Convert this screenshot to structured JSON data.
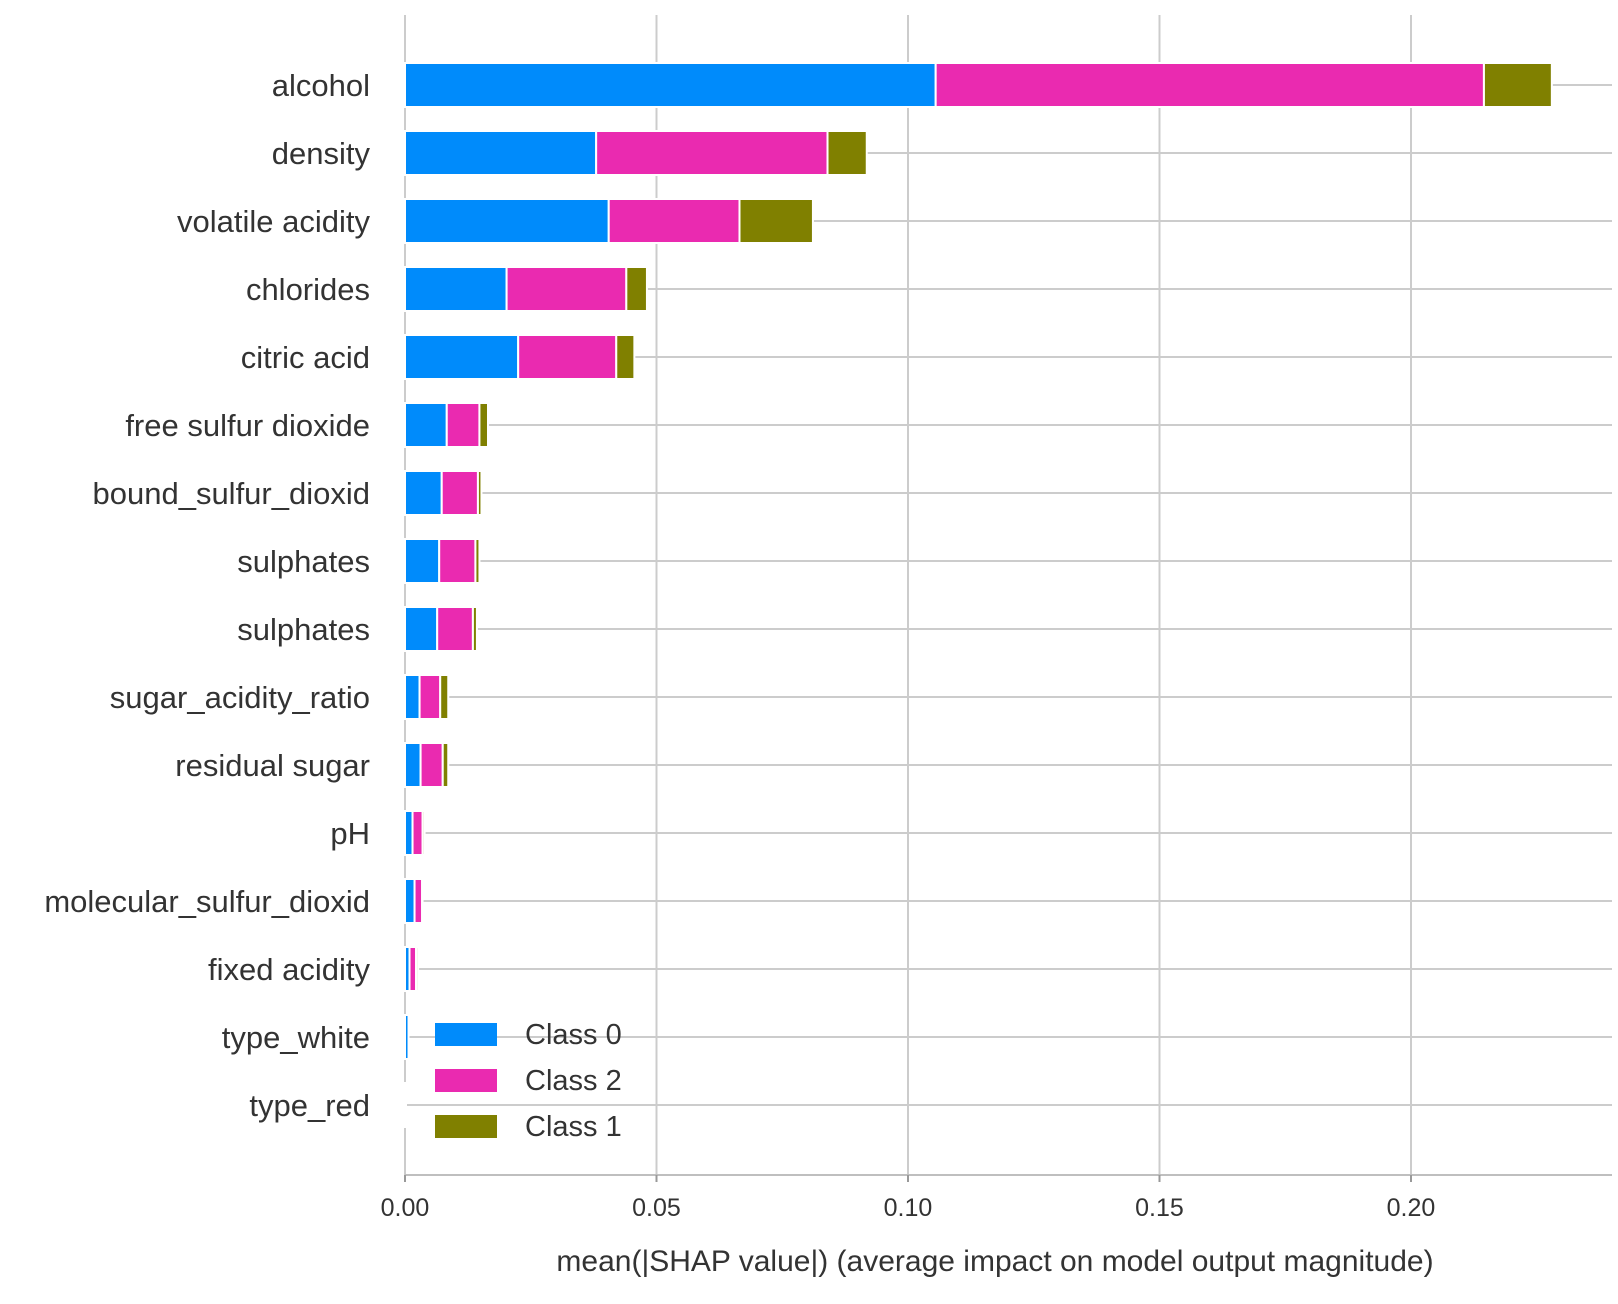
{
  "chart_data": {
    "type": "bar",
    "orientation": "horizontal",
    "stacked": true,
    "title": "",
    "xlabel": "mean(|SHAP value|) (average impact on model output magnitude)",
    "ylabel": "",
    "xlim": [
      0,
      0.24
    ],
    "xticks": [
      0.0,
      0.05,
      0.1,
      0.15,
      0.2
    ],
    "xtick_labels": [
      "0.00",
      "0.05",
      "0.10",
      "0.15",
      "0.20"
    ],
    "grid": true,
    "legend_position": "lower-left",
    "categories": [
      "alcohol",
      "density",
      "volatile acidity",
      "chlorides",
      "citric acid",
      "free sulfur dioxide",
      "bound_sulfur_dioxid",
      "sulphates",
      "sulphates",
      "sugar_acidity_ratio",
      "residual sugar",
      "pH",
      "molecular_sulfur_dioxid",
      "fixed acidity",
      "type_white",
      "type_red"
    ],
    "series": [
      {
        "name": "Class 0",
        "color": "#008bfb",
        "values": [
          0.1055,
          0.038,
          0.0405,
          0.0202,
          0.0225,
          0.0083,
          0.0073,
          0.0068,
          0.0064,
          0.0029,
          0.0031,
          0.0015,
          0.0019,
          0.0009,
          0.0007,
          0.0002
        ]
      },
      {
        "name": "Class 2",
        "color": "#ea2ab0",
        "values": [
          0.109,
          0.046,
          0.026,
          0.0238,
          0.0195,
          0.0065,
          0.0072,
          0.0072,
          0.0071,
          0.0041,
          0.0044,
          0.002,
          0.0015,
          0.0013,
          0.0,
          0.0
        ]
      },
      {
        "name": "Class 1",
        "color": "#808000",
        "values": [
          0.0135,
          0.0078,
          0.0146,
          0.0041,
          0.0036,
          0.0017,
          0.0007,
          0.0008,
          0.0008,
          0.0016,
          0.0011,
          0.0004,
          0.0001,
          0.0004,
          0.0,
          0.0
        ]
      }
    ],
    "legend": [
      "Class 0",
      "Class 2",
      "Class 1"
    ]
  }
}
